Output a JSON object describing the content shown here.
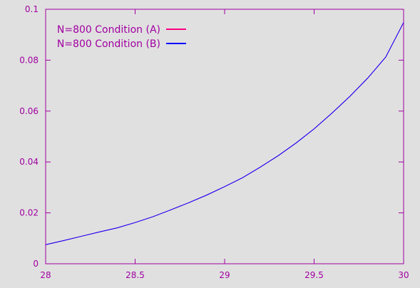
{
  "chart_data": {
    "type": "line",
    "title": "",
    "xlabel": "",
    "ylabel": "",
    "xlim": [
      28,
      30
    ],
    "ylim": [
      0,
      0.1
    ],
    "x_ticks": [
      "28",
      "28.5",
      "29",
      "29.5",
      "30"
    ],
    "y_ticks": [
      "0",
      "0.02",
      "0.04",
      "0.06",
      "0.08",
      "0.1"
    ],
    "grid": false,
    "legend_position": "top-left",
    "axis_color": "#a000a0",
    "series": [
      {
        "name": "N=800 Condition (A)",
        "color": "#ff0080",
        "x": [
          28,
          28.1,
          28.2,
          28.3,
          28.4,
          28.5,
          28.6,
          28.7,
          28.8,
          28.9,
          29,
          29.1,
          29.2,
          29.3,
          29.4,
          29.5,
          29.6,
          29.7,
          29.8,
          29.9,
          30
        ],
        "y": [
          0.0075,
          0.0091,
          0.0108,
          0.0125,
          0.0141,
          0.0162,
          0.0185,
          0.0212,
          0.024,
          0.027,
          0.0303,
          0.0338,
          0.038,
          0.0425,
          0.0475,
          0.053,
          0.0592,
          0.0658,
          0.073,
          0.0812,
          0.0948
        ]
      },
      {
        "name": "N=800 Condition (B)",
        "color": "#0000ff",
        "x": [
          28,
          28.1,
          28.2,
          28.3,
          28.4,
          28.5,
          28.6,
          28.7,
          28.8,
          28.9,
          29,
          29.1,
          29.2,
          29.3,
          29.4,
          29.5,
          29.6,
          29.7,
          29.8,
          29.9,
          30
        ],
        "y": [
          0.0075,
          0.0091,
          0.0108,
          0.0125,
          0.0141,
          0.0162,
          0.0185,
          0.0212,
          0.024,
          0.027,
          0.0303,
          0.0338,
          0.038,
          0.0425,
          0.0475,
          0.053,
          0.0592,
          0.0658,
          0.073,
          0.0812,
          0.0948
        ]
      }
    ]
  }
}
